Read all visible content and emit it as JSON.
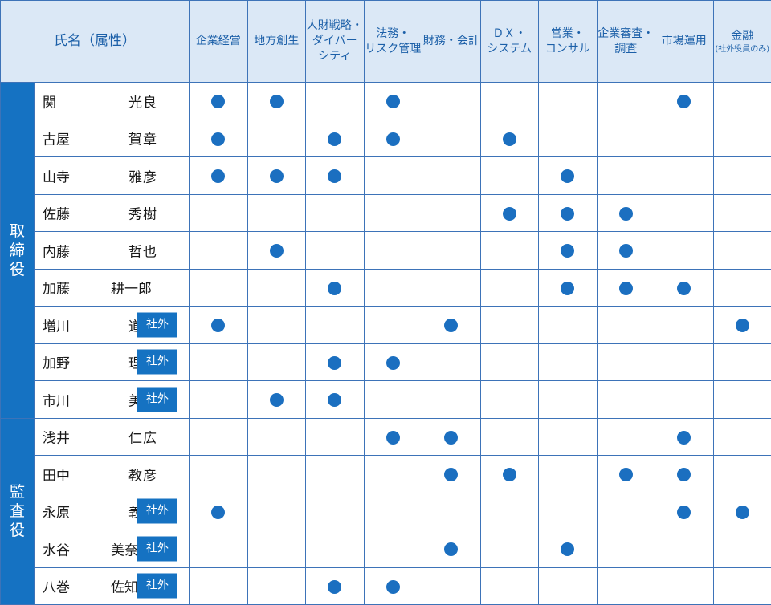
{
  "header": {
    "name_label": "氏名（属性）",
    "columns": [
      {
        "lines": [
          "企業経営"
        ]
      },
      {
        "lines": [
          "地方創生"
        ]
      },
      {
        "lines": [
          "人財戦略・",
          "ダイバー",
          "シティ"
        ]
      },
      {
        "lines": [
          "法務・",
          "リスク管理"
        ]
      },
      {
        "lines": [
          "財務・会計"
        ]
      },
      {
        "lines": [
          "ＤＸ・",
          "システム"
        ]
      },
      {
        "lines": [
          "営業・",
          "コンサル"
        ]
      },
      {
        "lines": [
          "企業審査・",
          "調査"
        ]
      },
      {
        "lines": [
          "市場運用"
        ]
      },
      {
        "lines": [
          "金融"
        ],
        "note": "(社外役員のみ)"
      }
    ]
  },
  "badge_label": "社外",
  "groups": [
    {
      "label": "取締役",
      "members": [
        {
          "surname": "関",
          "given": "光良",
          "outside": false,
          "skills": [
            1,
            1,
            0,
            1,
            0,
            0,
            0,
            0,
            1,
            0
          ]
        },
        {
          "surname": "古屋",
          "given": "賀章",
          "outside": false,
          "skills": [
            1,
            0,
            1,
            1,
            0,
            1,
            0,
            0,
            0,
            0
          ]
        },
        {
          "surname": "山寺",
          "given": "雅彦",
          "outside": false,
          "skills": [
            1,
            1,
            1,
            0,
            0,
            0,
            1,
            0,
            0,
            0
          ]
        },
        {
          "surname": "佐藤",
          "given": "秀樹",
          "outside": false,
          "skills": [
            0,
            0,
            0,
            0,
            0,
            1,
            1,
            1,
            0,
            0
          ]
        },
        {
          "surname": "内藤",
          "given": "哲也",
          "outside": false,
          "skills": [
            0,
            1,
            0,
            0,
            0,
            0,
            1,
            1,
            0,
            0
          ]
        },
        {
          "surname": "加藤",
          "given": "耕一郎",
          "outside": false,
          "skills": [
            0,
            0,
            1,
            0,
            0,
            0,
            1,
            1,
            1,
            0
          ]
        },
        {
          "surname": "増川",
          "given": "道夫",
          "outside": true,
          "skills": [
            1,
            0,
            0,
            0,
            1,
            0,
            0,
            0,
            0,
            1
          ]
        },
        {
          "surname": "加野",
          "given": "理代",
          "outside": true,
          "skills": [
            0,
            0,
            1,
            1,
            0,
            0,
            0,
            0,
            0,
            0
          ]
        },
        {
          "surname": "市川",
          "given": "美季",
          "outside": true,
          "skills": [
            0,
            1,
            1,
            0,
            0,
            0,
            0,
            0,
            0,
            0
          ]
        }
      ]
    },
    {
      "label": "監査役",
      "members": [
        {
          "surname": "浅井",
          "given": "仁広",
          "outside": false,
          "skills": [
            0,
            0,
            0,
            1,
            1,
            0,
            0,
            0,
            1,
            0
          ]
        },
        {
          "surname": "田中",
          "given": "教彦",
          "outside": false,
          "skills": [
            0,
            0,
            0,
            0,
            1,
            1,
            0,
            1,
            1,
            0
          ]
        },
        {
          "surname": "永原",
          "given": "義之",
          "outside": true,
          "skills": [
            1,
            0,
            0,
            0,
            0,
            0,
            0,
            0,
            1,
            1
          ]
        },
        {
          "surname": "水谷",
          "given": "美奈子",
          "outside": true,
          "skills": [
            0,
            0,
            0,
            0,
            1,
            0,
            1,
            0,
            0,
            0
          ]
        },
        {
          "surname": "八巻",
          "given": "佐知子",
          "outside": true,
          "skills": [
            0,
            0,
            1,
            1,
            0,
            0,
            0,
            0,
            0,
            0
          ]
        }
      ]
    }
  ],
  "colors": {
    "accent": "#1572c2",
    "dot": "#1b6fc0",
    "header_bg": "#dbe8f6",
    "header_text": "#1b5fa8",
    "border": "#3d73b8"
  }
}
